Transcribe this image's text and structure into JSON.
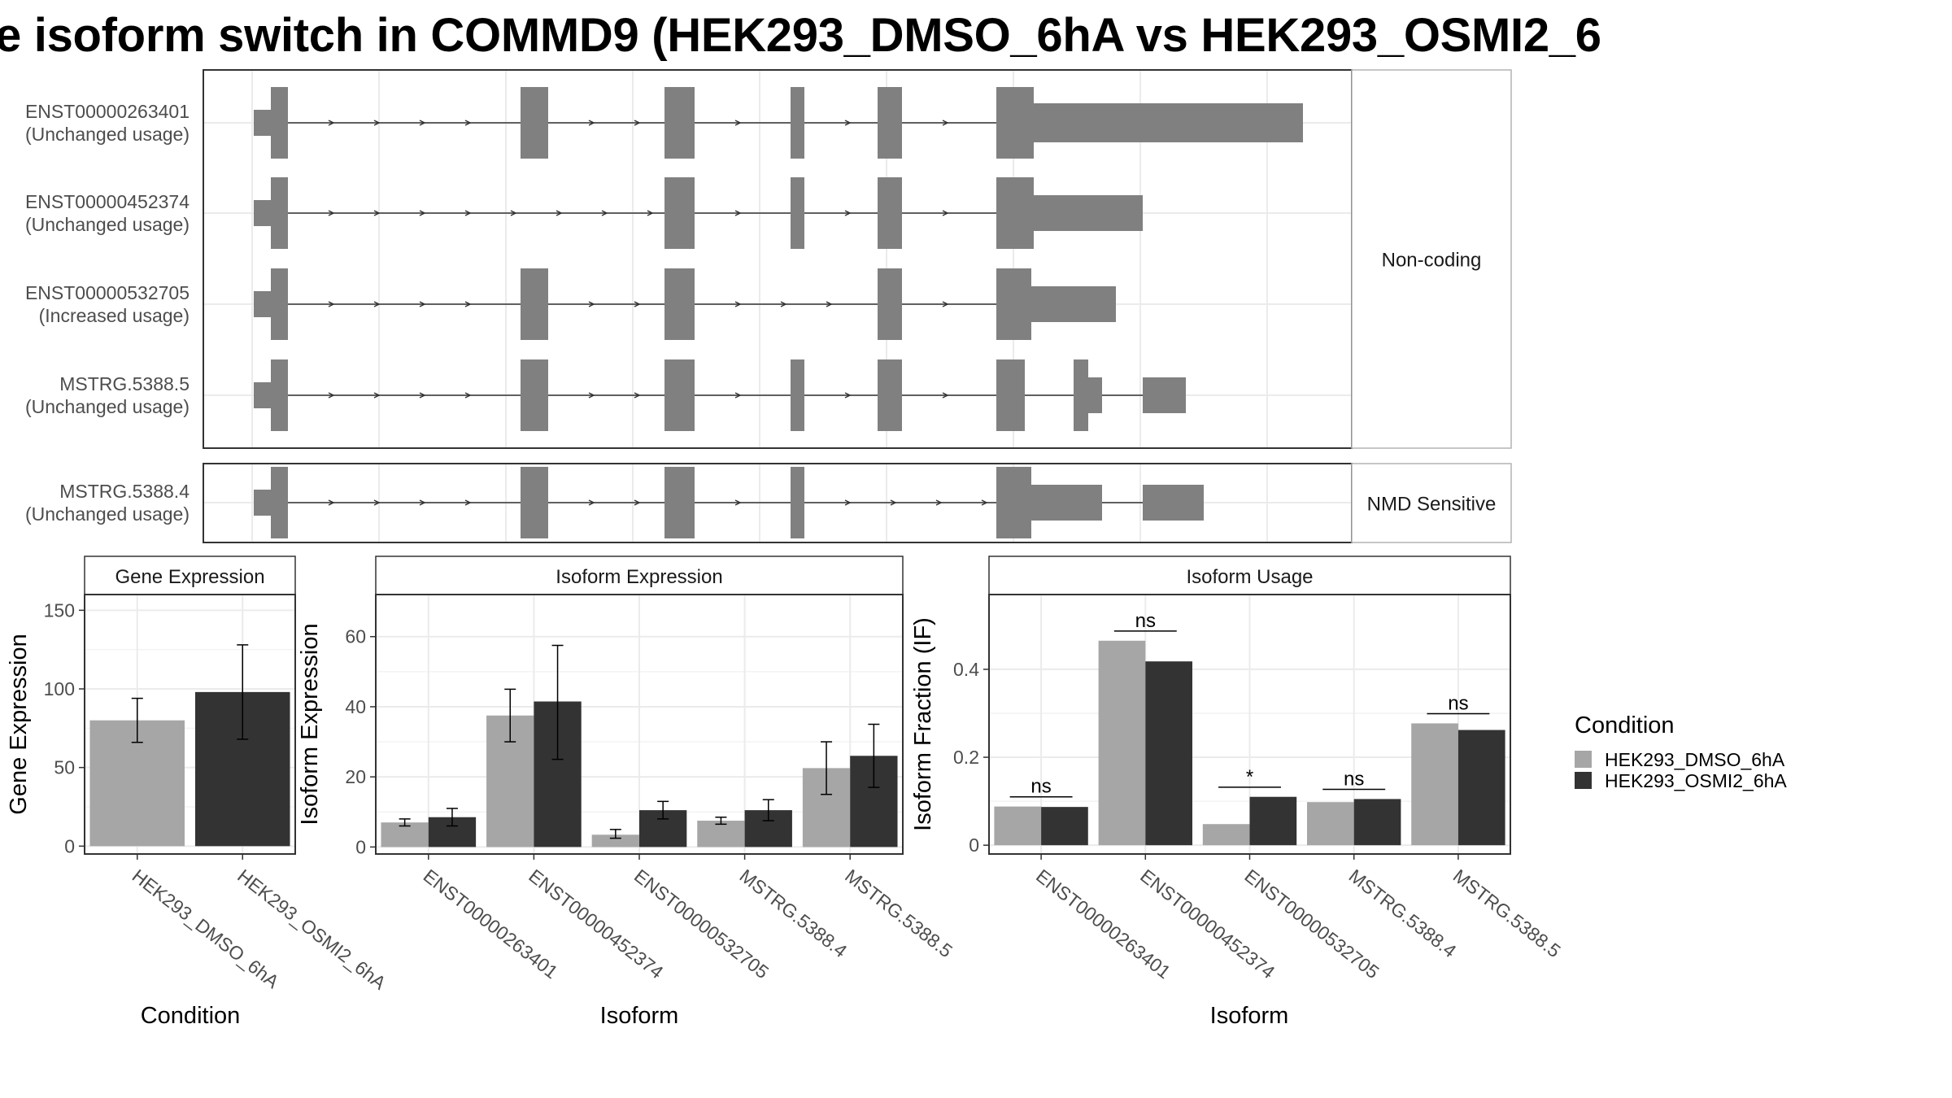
{
  "page_title": "e isoform switch in COMMD9 (HEK293_DMSO_6hA vs HEK293_OSMI2_6",
  "colors": {
    "dmso": "#a6a6a6",
    "osmi": "#333333",
    "exon": "#808080",
    "grid": "#ebebeb",
    "panel_border": "#333333",
    "strip_border": "#b3b3b3"
  },
  "chart_data": [
    {
      "type": "gene-structure",
      "groups": [
        {
          "label": "Non-coding",
          "transcripts": [
            {
              "id": "ENST00000263401",
              "status": "(Unchanged usage)"
            },
            {
              "id": "ENST00000452374",
              "status": "(Unchanged usage)"
            },
            {
              "id": "ENST00000532705",
              "status": "(Increased usage)"
            },
            {
              "id": "MSTRG.5388.5",
              "status": "(Unchanged usage)"
            }
          ]
        },
        {
          "label": "NMD Sensitive",
          "transcripts": [
            {
              "id": "MSTRG.5388.4",
              "status": "(Unchanged usage)"
            }
          ]
        }
      ]
    },
    {
      "type": "bar",
      "title": "Gene Expression",
      "xlabel": "Condition",
      "ylabel": "Gene Expression",
      "ylim": [
        -5,
        160
      ],
      "yticks": [
        0,
        50,
        100,
        150
      ],
      "categories": [
        "HEK293_DMSO_6hA",
        "HEK293_OSMI2_6hA"
      ],
      "values": [
        80,
        98
      ],
      "errors": [
        [
          66,
          94
        ],
        [
          68,
          128
        ]
      ]
    },
    {
      "type": "bar",
      "title": "Isoform Expression",
      "xlabel": "Isoform",
      "ylabel": "Isoform Expression",
      "ylim": [
        -2,
        72
      ],
      "yticks": [
        0,
        20,
        40,
        60
      ],
      "categories": [
        "ENST00000263401",
        "ENST00000452374",
        "ENST00000532705",
        "MSTRG.5388.4",
        "MSTRG.5388.5"
      ],
      "series": [
        {
          "name": "HEK293_DMSO_6hA",
          "values": [
            7,
            37.5,
            3.5,
            7.5,
            22.5
          ],
          "errors": [
            [
              6,
              8
            ],
            [
              30,
              45
            ],
            [
              2.5,
              5
            ],
            [
              6.5,
              8.5
            ],
            [
              15,
              30
            ]
          ]
        },
        {
          "name": "HEK293_OSMI2_6hA",
          "values": [
            8.5,
            41.5,
            10.5,
            10.5,
            26
          ],
          "errors": [
            [
              6,
              11
            ],
            [
              25,
              57.5
            ],
            [
              8,
              13
            ],
            [
              7.5,
              13.5
            ],
            [
              17,
              35
            ]
          ]
        }
      ]
    },
    {
      "type": "bar",
      "title": "Isoform Usage",
      "xlabel": "Isoform",
      "ylabel": "Isoform Fraction (IF)",
      "ylim": [
        -0.02,
        0.57
      ],
      "yticks": [
        0.0,
        0.2,
        0.4
      ],
      "categories": [
        "ENST00000263401",
        "ENST00000452374",
        "ENST00000532705",
        "MSTRG.5388.4",
        "MSTRG.5388.5"
      ],
      "series": [
        {
          "name": "HEK293_DMSO_6hA",
          "values": [
            0.088,
            0.465,
            0.048,
            0.098,
            0.277
          ]
        },
        {
          "name": "HEK293_OSMI2_6hA",
          "values": [
            0.087,
            0.418,
            0.11,
            0.105,
            0.262
          ]
        }
      ],
      "significance": [
        "ns",
        "ns",
        "*",
        "ns",
        "ns"
      ]
    }
  ],
  "legend": {
    "title": "Condition",
    "items": [
      "HEK293_DMSO_6hA",
      "HEK293_OSMI2_6hA"
    ]
  }
}
